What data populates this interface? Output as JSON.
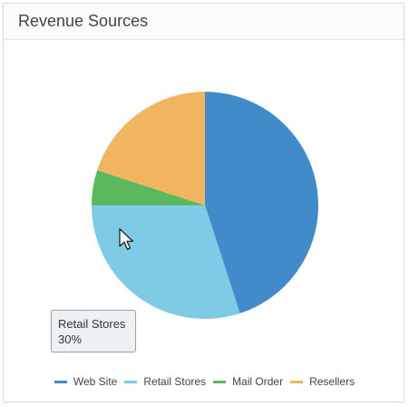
{
  "card": {
    "title": "Revenue Sources"
  },
  "tooltip": {
    "label": "Retail Stores",
    "value": "30%"
  },
  "chart_data": {
    "type": "pie",
    "title": "Revenue Sources",
    "slices": [
      {
        "name": "Web Site",
        "value": 45,
        "color": "#428bca"
      },
      {
        "name": "Retail Stores",
        "value": 30,
        "color": "#7ecbe6"
      },
      {
        "name": "Mail Order",
        "value": 5,
        "color": "#5cb85c"
      },
      {
        "name": "Resellers",
        "value": 20,
        "color": "#f0b55e"
      }
    ],
    "legend_position": "bottom"
  },
  "cursor_icon": "mouse-pointer-icon"
}
